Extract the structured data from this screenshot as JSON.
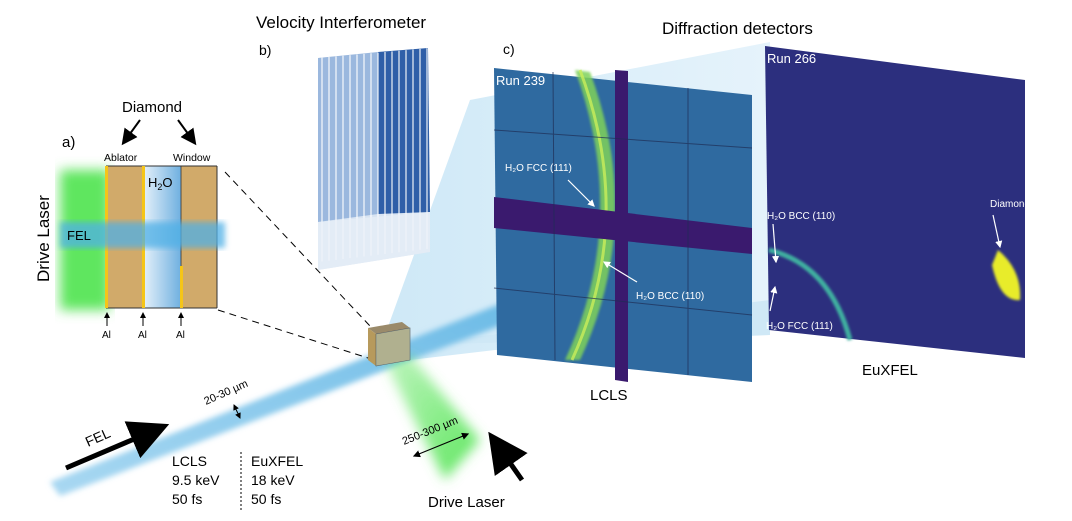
{
  "panel_a": {
    "label": "a)",
    "diamond_label": "Diamond",
    "ablator_label": "Ablator",
    "window_label": "Window",
    "water_label": "H",
    "water_sub": "2",
    "water_tail": "O",
    "fel_label": "FEL",
    "drive_laser_label": "Drive Laser",
    "al_labels": [
      "Al",
      "Al",
      "Al"
    ]
  },
  "panel_b": {
    "title": "Velocity Interferometer",
    "label": "b)"
  },
  "panel_c": {
    "title": "Diffraction detectors",
    "label": "c)",
    "lcls": {
      "run": "Run 239",
      "name": "LCLS",
      "annot_fcc": "H₂O FCC (111)",
      "annot_bcc": "H₂O BCC (110)"
    },
    "euxfel": {
      "run": "Run 266",
      "name": "EuXFEL",
      "annot_bcc": "H₂O BCC (110)",
      "annot_fcc": "H₂O FCC (111)",
      "annot_diamond": "Diamond"
    }
  },
  "beam": {
    "fel_label": "FEL",
    "fel_size": "20-30 µm",
    "laser_size": "250-300 µm",
    "drive_laser_label": "Drive Laser",
    "table": {
      "lcls": [
        "LCLS",
        "9.5 keV",
        "50 fs"
      ],
      "euxfel": [
        "EuXFEL",
        "18 keV",
        "50 fs"
      ]
    }
  },
  "colors": {
    "laser_green": "#5ee65e",
    "fel_blue": "#7cc4ea",
    "diamond_tan": "#d1aa6a",
    "aluminum_yellow": "#f5c518",
    "detector_bg": "#2f5d9a",
    "detector_gap": "#3a1a6e",
    "ring_green": "#b6e84a"
  }
}
